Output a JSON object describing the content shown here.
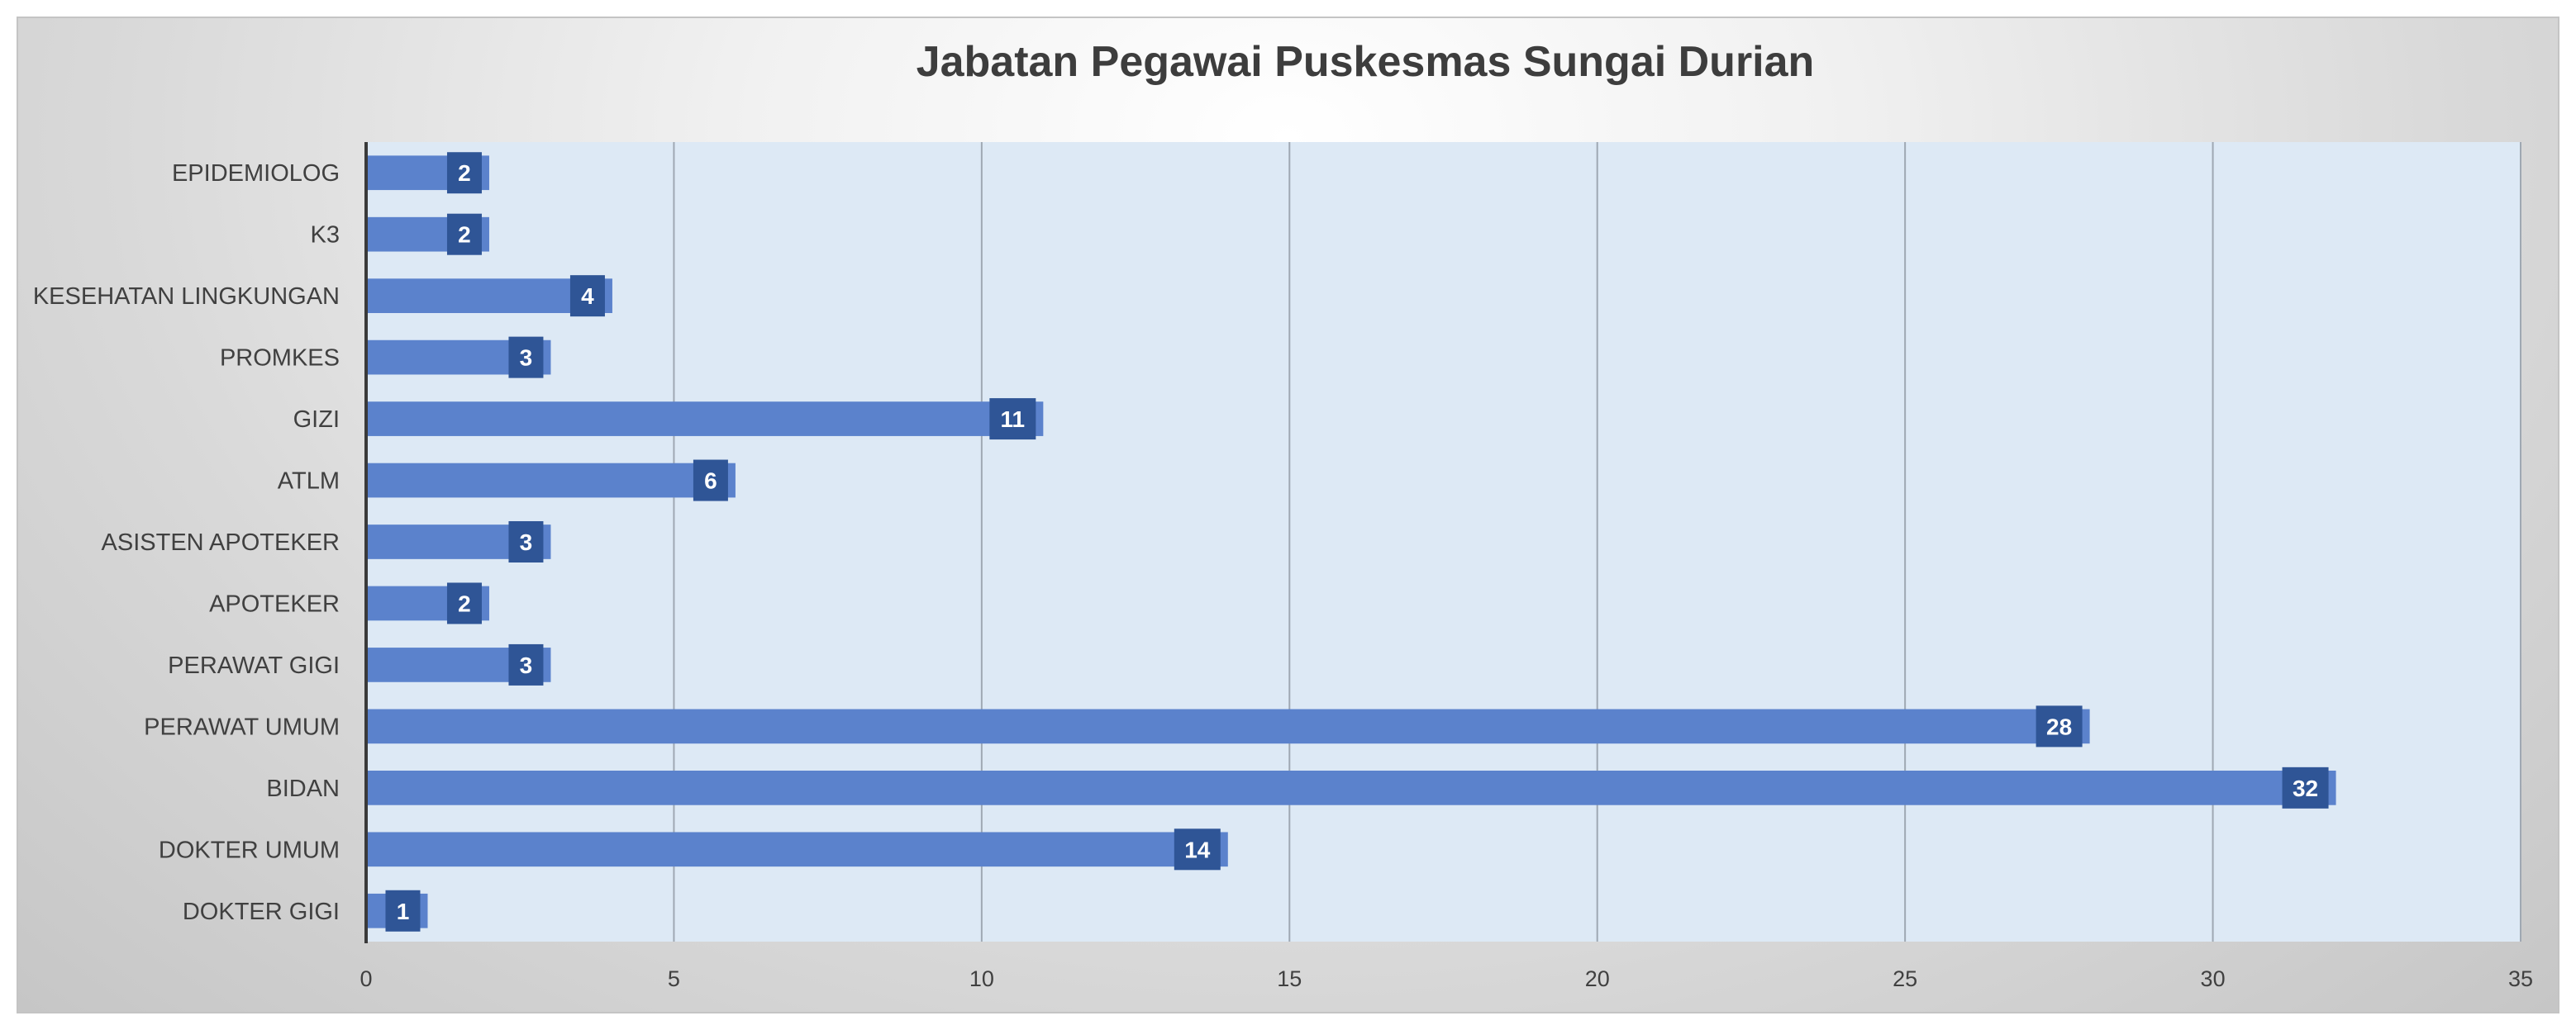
{
  "chart_data": {
    "type": "bar",
    "orientation": "horizontal",
    "title": "Jabatan Pegawai Puskesmas Sungai Durian",
    "xlabel": "",
    "ylabel": "",
    "categories": [
      "EPIDEMIOLOG",
      "K3",
      "KESEHATAN LINGKUNGAN",
      "PROMKES",
      "GIZI",
      "ATLM",
      "ASISTEN APOTEKER",
      "APOTEKER",
      "PERAWAT GIGI",
      "PERAWAT UMUM",
      "BIDAN",
      "DOKTER UMUM",
      "DOKTER GIGI"
    ],
    "values": [
      2,
      2,
      4,
      3,
      11,
      6,
      3,
      2,
      3,
      28,
      32,
      14,
      1
    ],
    "xlim": [
      0,
      35
    ],
    "xticks": [
      0,
      5,
      10,
      15,
      20,
      25,
      30,
      35
    ],
    "grid": "vertical",
    "legend": "none",
    "colors": {
      "bar": "#5b82cc",
      "label_box": "#2f5596",
      "plot_bg": "#dde9f5",
      "gridline": "#9fa8b3",
      "axis": "#3a3a3a",
      "text": "#404040",
      "title": "#3d3d3d"
    }
  }
}
